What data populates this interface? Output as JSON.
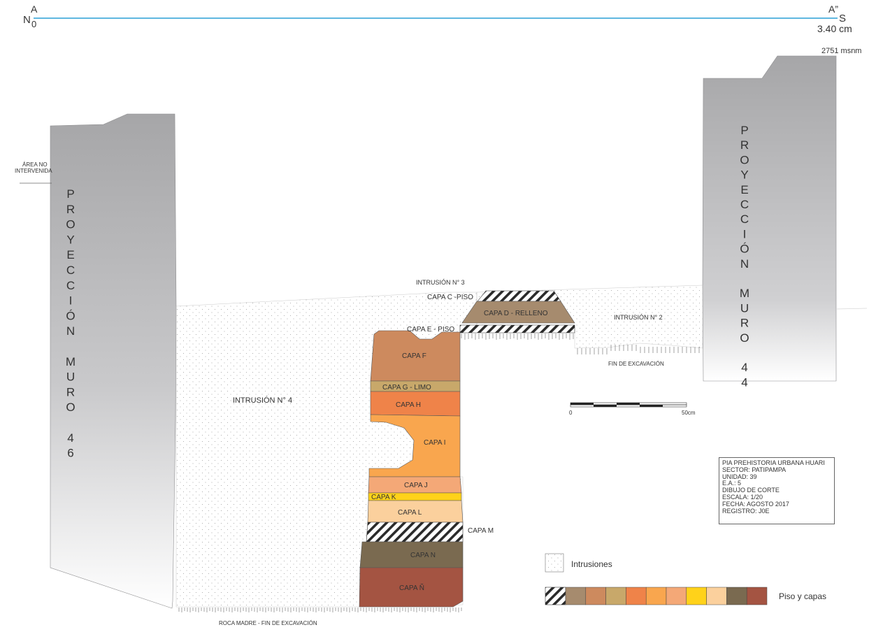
{
  "section_line": {
    "start_label": "A",
    "start_sub": "0",
    "start_dir": "N",
    "end_label": "A”",
    "end_dir": "S",
    "length": "3.40 cm",
    "line_color": "#2a9fd6"
  },
  "elevation": "2751 msnm",
  "left_note": [
    "ÁREA NO",
    "INTERVENIDA"
  ],
  "walls": {
    "left_letters": [
      "P",
      "R",
      "O",
      "Y",
      "E",
      "C",
      "C",
      "I",
      "Ó",
      "N",
      "",
      "M",
      "U",
      "R",
      "O",
      "",
      "4",
      "6"
    ],
    "right_letters": [
      "P",
      "R",
      "O",
      "Y",
      "E",
      "C",
      "C",
      "I",
      "Ó",
      "N",
      "",
      "M",
      "U",
      "R",
      "O",
      "",
      "4",
      "4"
    ],
    "gradient_top": "#a8a8aa",
    "gradient_bottom": "#ffffff"
  },
  "labels": {
    "intrusion3": "INTRUSIÓN N° 3",
    "capa_c": "CAPA C -PISO",
    "capa_d": "CAPA D - RELLENO",
    "intrusion2": "INTRUSIÓN N° 2",
    "capa_e": "CAPA E - PISO",
    "fin_excavacion": "FIN DE EXCAVACIÓN",
    "intrusion4": "INTRUSIÓN N° 4",
    "capa_f": "CAPA F",
    "capa_g": "CAPA G - LIMO",
    "capa_h": "CAPA H",
    "capa_i": "CAPA I",
    "capa_j": "CAPA J",
    "capa_k": "CAPA K",
    "capa_l": "CAPA L",
    "capa_m": "CAPA M",
    "capa_n": "CAPA N",
    "capa_nn": "CAPA Ñ",
    "roca_madre": "ROCA MADRE - FIN DE EXCAVACIÓN"
  },
  "layer_colors": {
    "d": "#a68b6e",
    "f": "#cd8a5e",
    "g": "#c8a86a",
    "h": "#ef8349",
    "i": "#f9a64e",
    "j": "#f4a877",
    "k": "#ffd21a",
    "l": "#fbd09d",
    "n": "#7a6a50",
    "nn": "#a45442"
  },
  "scale_bar": {
    "start": "0",
    "end": "50cm"
  },
  "info": [
    "PIA PREHISTORIA URBANA HUARI",
    "SECTOR: PATIPAMPA",
    "UNIDAD: 39",
    "E.A.: 5",
    "DIBUJO DE CORTE",
    "ESCALA: 1/20",
    "FECHA: AGOSTO 2017",
    "REGISTRO: J0E"
  ],
  "legend": {
    "intrusiones": "Intrusiones",
    "piso_capas": "Piso y capas",
    "swatches": [
      "#a68b6e",
      "#cd8a5e",
      "#c8a86a",
      "#ef8349",
      "#f9a64e",
      "#f4a877",
      "#ffd21a",
      "#fbd09d",
      "#7a6a50",
      "#a45442"
    ]
  }
}
